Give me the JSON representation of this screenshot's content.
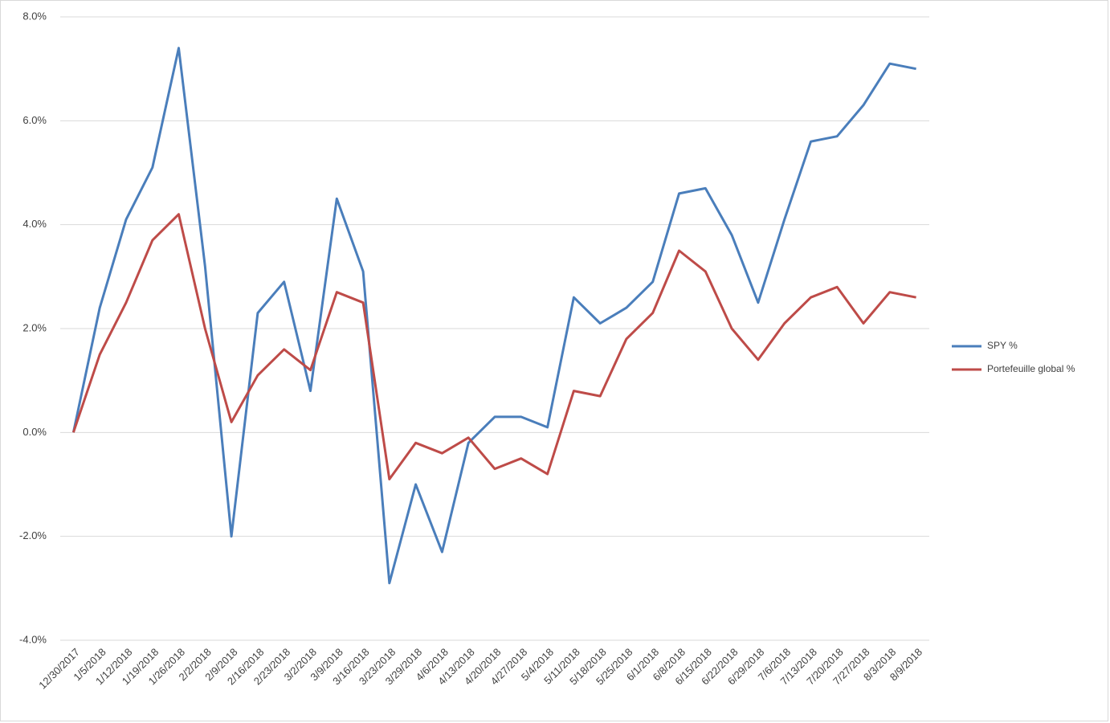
{
  "chart_data": {
    "type": "line",
    "categories": [
      "12/30/2017",
      "1/5/2018",
      "1/12/2018",
      "1/19/2018",
      "1/26/2018",
      "2/2/2018",
      "2/9/2018",
      "2/16/2018",
      "2/23/2018",
      "3/2/2018",
      "3/9/2018",
      "3/16/2018",
      "3/23/2018",
      "3/29/2018",
      "4/6/2018",
      "4/13/2018",
      "4/20/2018",
      "4/27/2018",
      "5/4/2018",
      "5/11/2018",
      "5/18/2018",
      "5/25/2018",
      "6/1/2018",
      "6/8/2018",
      "6/15/2018",
      "6/22/2018",
      "6/29/2018",
      "7/6/2018",
      "7/13/2018",
      "7/20/2018",
      "7/27/2018",
      "8/3/2018",
      "8/9/2018"
    ],
    "series": [
      {
        "name": "SPY %",
        "color": "#4a7ebb",
        "values": [
          0,
          2.4,
          4.1,
          5.1,
          7.4,
          3.2,
          -2.0,
          2.3,
          2.9,
          0.8,
          4.5,
          3.1,
          -2.9,
          -1.0,
          -2.3,
          -0.2,
          0.3,
          0.3,
          0.1,
          2.6,
          2.1,
          2.4,
          2.9,
          4.6,
          4.7,
          3.8,
          2.5,
          4.1,
          5.6,
          5.7,
          6.3,
          7.1,
          7.0
        ]
      },
      {
        "name": "Portefeuille global %",
        "color": "#be4b48",
        "values": [
          0,
          1.5,
          2.5,
          3.7,
          4.2,
          2.0,
          0.2,
          1.1,
          1.6,
          1.2,
          2.7,
          2.5,
          -0.9,
          -0.2,
          -0.4,
          -0.1,
          -0.7,
          -0.5,
          -0.8,
          0.8,
          0.7,
          1.8,
          2.3,
          3.5,
          3.1,
          2.0,
          1.4,
          2.1,
          2.6,
          2.8,
          2.1,
          2.7,
          2.6
        ]
      }
    ],
    "ylim": [
      -4,
      8
    ],
    "yticks": [
      {
        "value": -4,
        "label": "-4.0%"
      },
      {
        "value": -2,
        "label": "-2.0%"
      },
      {
        "value": 0,
        "label": "0.0%"
      },
      {
        "value": 2,
        "label": "2.0%"
      },
      {
        "value": 4,
        "label": "4.0%"
      },
      {
        "value": 6,
        "label": "6.0%"
      },
      {
        "value": 8,
        "label": "8.0%"
      }
    ],
    "grid": true,
    "legend": "right"
  }
}
